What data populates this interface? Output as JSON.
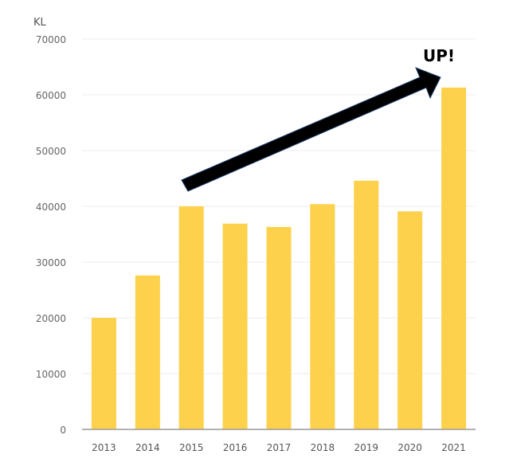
{
  "chart_data": {
    "type": "bar",
    "title": "",
    "xlabel": "",
    "ylabel": "KL",
    "categories": [
      "2013",
      "2014",
      "2015",
      "2016",
      "2017",
      "2018",
      "2019",
      "2020",
      "2021"
    ],
    "values": [
      20000,
      27600,
      40000,
      36900,
      36300,
      40400,
      44600,
      39100,
      61300
    ],
    "ylim": [
      0,
      70000
    ],
    "yticks": [
      "0",
      "10000",
      "20000",
      "30000",
      "40000",
      "50000",
      "60000",
      "70000"
    ],
    "grid": true,
    "bar_color": "#FDD14B",
    "annotation": {
      "text": "UP!",
      "arrow_from": "2015",
      "arrow_to": "2021",
      "color": "#000000"
    }
  }
}
